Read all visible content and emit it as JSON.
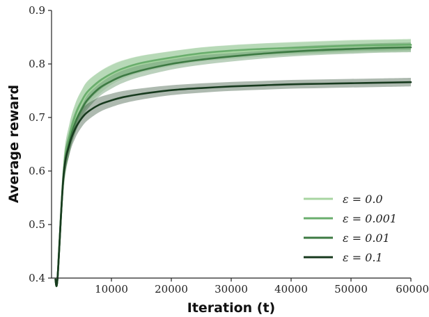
{
  "chart_data": {
    "type": "line",
    "xlabel": "Iteration (t)",
    "ylabel": "Average reward",
    "xlim": [
      0,
      60000
    ],
    "ylim": [
      0.4,
      0.9
    ],
    "x_ticks": [
      10000,
      20000,
      30000,
      40000,
      50000,
      60000
    ],
    "x_tick_labels": [
      "10000",
      "20000",
      "30000",
      "40000",
      "50000",
      "60000"
    ],
    "y_ticks": [
      0.4,
      0.5,
      0.6,
      0.7,
      0.8,
      0.9
    ],
    "y_tick_labels": [
      "0.4",
      "0.5",
      "0.6",
      "0.7",
      "0.8",
      "0.9"
    ],
    "grid": false,
    "legend_position": "bottom-right",
    "x": [
      1000,
      2000,
      3000,
      4000,
      5000,
      6000,
      8000,
      10000,
      12000,
      15000,
      20000,
      25000,
      30000,
      35000,
      40000,
      45000,
      50000,
      55000,
      60000
    ],
    "series": [
      {
        "name": "ε = 0.0",
        "color": "#a8d5a2",
        "values": [
          0.4,
          0.59,
          0.66,
          0.7,
          0.725,
          0.745,
          0.765,
          0.78,
          0.79,
          0.8,
          0.81,
          0.818,
          0.822,
          0.826,
          0.829,
          0.831,
          0.833,
          0.834,
          0.835
        ],
        "band": 0.012
      },
      {
        "name": "ε = 0.001",
        "color": "#6aae6d",
        "values": [
          0.4,
          0.595,
          0.665,
          0.705,
          0.73,
          0.748,
          0.768,
          0.782,
          0.792,
          0.802,
          0.812,
          0.82,
          0.825,
          0.828,
          0.83,
          0.832,
          0.834,
          0.835,
          0.836
        ],
        "band": 0.01
      },
      {
        "name": "ε = 0.01",
        "color": "#3d7a43",
        "values": [
          0.4,
          0.59,
          0.655,
          0.692,
          0.715,
          0.733,
          0.755,
          0.768,
          0.778,
          0.788,
          0.8,
          0.808,
          0.814,
          0.819,
          0.823,
          0.826,
          0.828,
          0.83,
          0.831
        ],
        "band": 0.009
      },
      {
        "name": "ε = 0.1",
        "color": "#173a1e",
        "values": [
          0.4,
          0.59,
          0.65,
          0.68,
          0.698,
          0.71,
          0.724,
          0.732,
          0.738,
          0.744,
          0.751,
          0.755,
          0.758,
          0.76,
          0.762,
          0.763,
          0.764,
          0.765,
          0.766
        ],
        "band": 0.008
      }
    ]
  }
}
